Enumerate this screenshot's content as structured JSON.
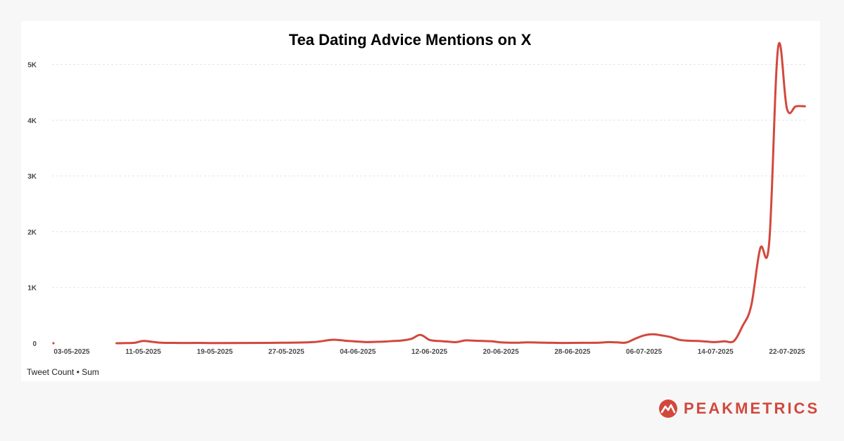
{
  "title": "Tea Dating Advice Mentions on X",
  "legend_label": "Tweet Count • Sum",
  "brand": {
    "name": "PEAKMETRICS",
    "icon": "mountain-peak-icon"
  },
  "colors": {
    "line": "#d2483d",
    "brand": "#d2483d"
  },
  "chart_data": {
    "type": "line",
    "title": "Tea Dating Advice Mentions on X",
    "xlabel": "",
    "ylabel": "",
    "ylim": [
      0,
      5500
    ],
    "y_ticks": [
      0,
      1000,
      2000,
      3000,
      4000,
      5000
    ],
    "y_tick_labels": [
      "0",
      "1K",
      "2K",
      "3K",
      "4K",
      "5K"
    ],
    "x_tick_labels": [
      "03-05-2025",
      "11-05-2025",
      "19-05-2025",
      "27-05-2025",
      "04-06-2025",
      "12-06-2025",
      "20-06-2025",
      "28-06-2025",
      "06-07-2025",
      "14-07-2025",
      "22-07-2025"
    ],
    "grid": true,
    "legend": "bottom-left",
    "series": [
      {
        "name": "Tweet Count • Sum",
        "x": [
          "2025-05-08",
          "2025-05-09",
          "2025-05-10",
          "2025-05-11",
          "2025-05-12",
          "2025-05-13",
          "2025-05-15",
          "2025-05-17",
          "2025-05-19",
          "2025-05-22",
          "2025-05-25",
          "2025-05-27",
          "2025-05-30",
          "2025-06-01",
          "2025-06-02",
          "2025-06-03",
          "2025-06-04",
          "2025-06-05",
          "2025-06-06",
          "2025-06-07",
          "2025-06-08",
          "2025-06-09",
          "2025-06-10",
          "2025-06-11",
          "2025-06-12",
          "2025-06-13",
          "2025-06-14",
          "2025-06-15",
          "2025-06-16",
          "2025-06-17",
          "2025-06-18",
          "2025-06-19",
          "2025-06-20",
          "2025-06-21",
          "2025-06-22",
          "2025-06-23",
          "2025-06-25",
          "2025-06-27",
          "2025-06-29",
          "2025-07-01",
          "2025-07-02",
          "2025-07-03",
          "2025-07-04",
          "2025-07-05",
          "2025-07-06",
          "2025-07-07",
          "2025-07-08",
          "2025-07-09",
          "2025-07-10",
          "2025-07-11",
          "2025-07-12",
          "2025-07-13",
          "2025-07-14",
          "2025-07-15",
          "2025-07-16",
          "2025-07-17",
          "2025-07-18",
          "2025-07-19",
          "2025-07-20",
          "2025-07-21",
          "2025-07-22",
          "2025-07-23",
          "2025-07-24"
        ],
        "y": [
          0,
          2,
          8,
          40,
          25,
          10,
          5,
          6,
          4,
          5,
          6,
          10,
          20,
          60,
          55,
          40,
          30,
          20,
          25,
          30,
          40,
          50,
          80,
          150,
          60,
          40,
          30,
          20,
          50,
          45,
          40,
          35,
          15,
          10,
          10,
          15,
          10,
          5,
          8,
          10,
          20,
          15,
          12,
          80,
          140,
          160,
          140,
          110,
          60,
          45,
          40,
          30,
          20,
          35,
          30,
          300,
          680,
          1700,
          1800,
          5300,
          4200,
          4250,
          4250
        ]
      }
    ]
  }
}
